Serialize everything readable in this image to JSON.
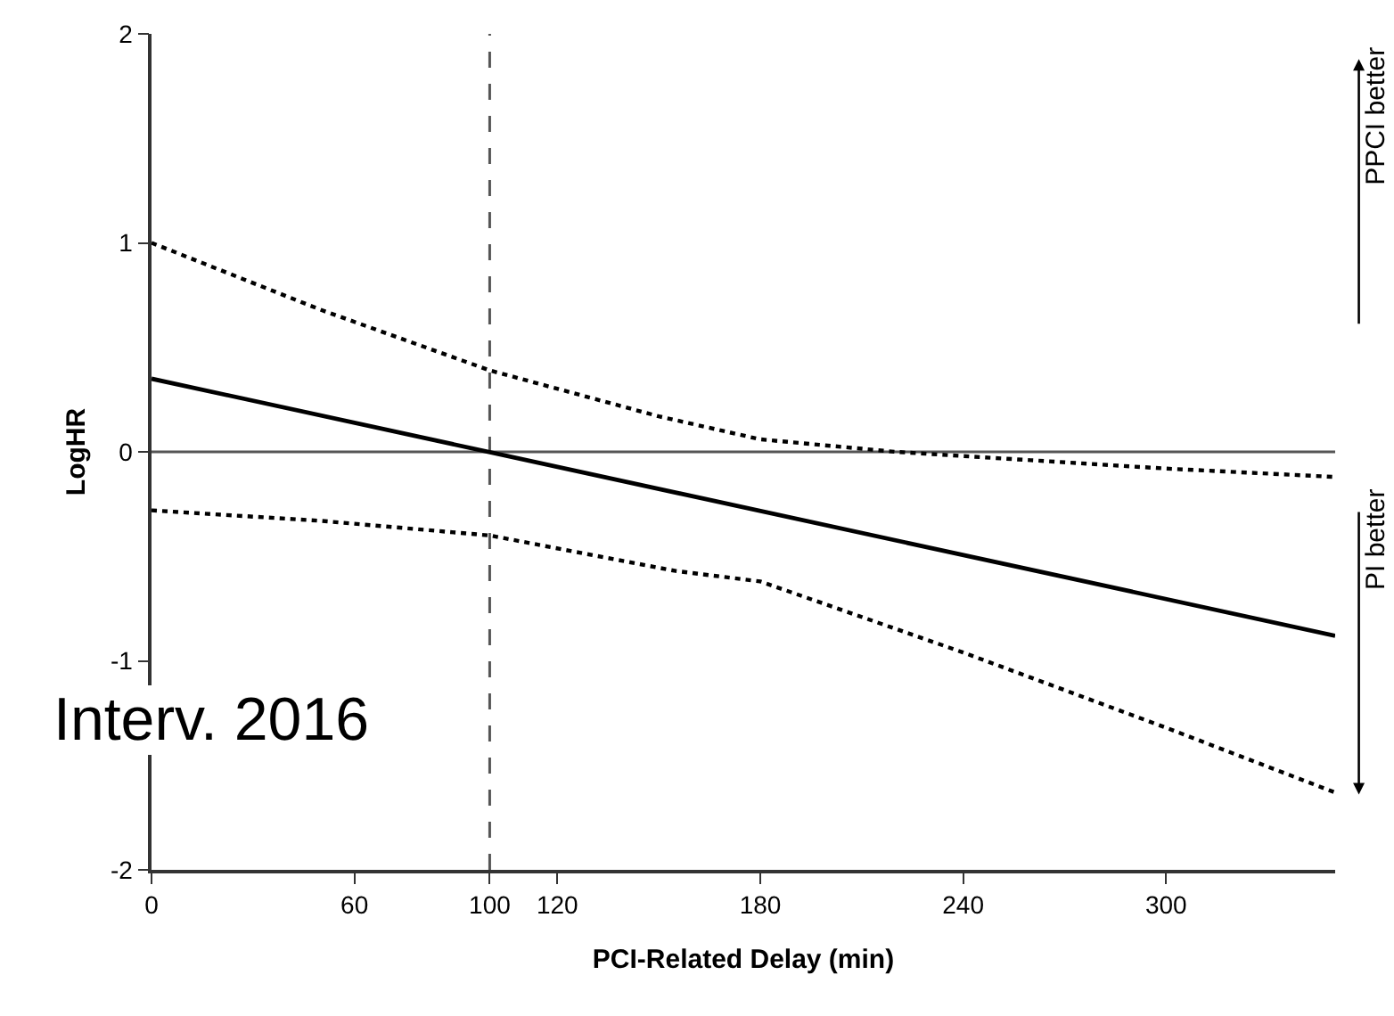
{
  "chart_data": {
    "type": "line",
    "xlabel": "PCI-Related Delay (min)",
    "ylabel": "LogHR",
    "x": [
      0,
      50,
      100,
      150,
      180,
      220,
      260,
      300,
      350
    ],
    "series": [
      {
        "color": "#000000",
        "line_style": "solid",
        "x": [
          0,
          350
        ],
        "values": [
          0.35,
          -0.88
        ]
      },
      {
        "color": "#000000",
        "line_style": "dotted",
        "values": [
          1.0,
          0.68,
          0.39,
          0.17,
          0.06,
          0.0,
          -0.04,
          -0.08,
          -0.12
        ]
      },
      {
        "color": "#000000",
        "line_style": "dotted",
        "x": [
          0,
          50,
          100,
          155,
          180,
          240,
          300,
          350
        ],
        "values": [
          -0.28,
          -0.33,
          -0.4,
          -0.57,
          -0.62,
          -0.96,
          -1.32,
          -1.63
        ]
      }
    ],
    "xlim": [
      0,
      350
    ],
    "ylim": [
      -2,
      2
    ],
    "xticks": [
      0,
      60,
      100,
      120,
      180,
      240,
      300
    ],
    "yticks": [
      -2,
      -1,
      0,
      1,
      2
    ],
    "ref_lines": [
      {
        "axis": "x",
        "value": 100,
        "line_style": "dashed",
        "color": "#555555"
      },
      {
        "axis": "y",
        "value": 0,
        "line_style": "solid",
        "color": "#555555"
      }
    ],
    "annotations": [
      "PPCI better",
      "PI better",
      "Interv. 2016"
    ],
    "grid": false,
    "legend": false,
    "marker": "none"
  }
}
